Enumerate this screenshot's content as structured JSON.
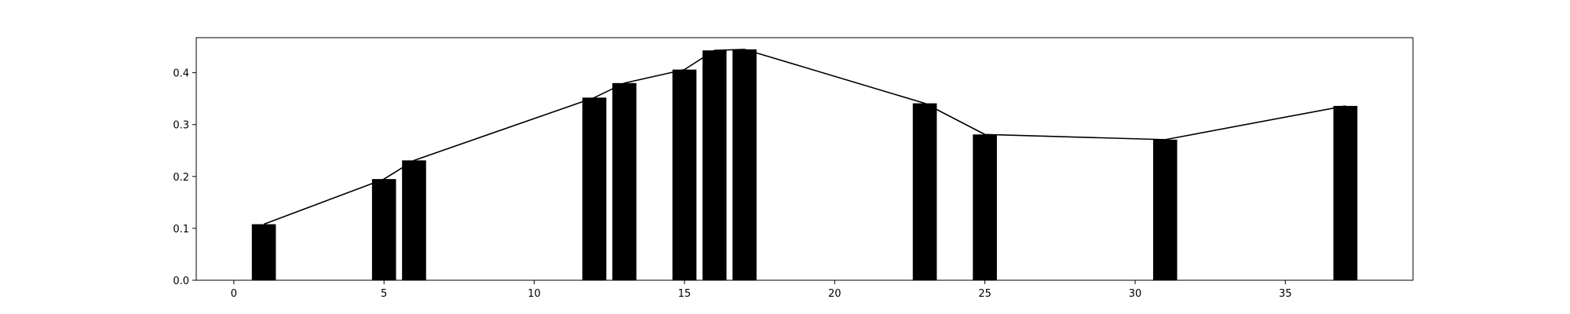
{
  "chart_data": {
    "type": "bar",
    "title": "",
    "xlabel": "",
    "ylabel": "",
    "xlim": [
      -1.25,
      39.25
    ],
    "ylim": [
      0,
      0.4675
    ],
    "grid": false,
    "legend": "none",
    "bar_color": "#000000",
    "line_color": "#000000",
    "bar_width": 0.8,
    "x": [
      1,
      5,
      6,
      12,
      13,
      15,
      16,
      17,
      23,
      25,
      31,
      37
    ],
    "values": [
      0.108,
      0.195,
      0.231,
      0.352,
      0.38,
      0.406,
      0.443,
      0.445,
      0.341,
      0.281,
      0.271,
      0.336
    ],
    "line_values": [
      0.108,
      0.195,
      0.231,
      0.352,
      0.38,
      0.406,
      0.443,
      0.445,
      0.341,
      0.281,
      0.271,
      0.336
    ],
    "xticks": [
      0,
      5,
      10,
      15,
      20,
      25,
      30,
      35
    ],
    "xtick_labels": [
      "0",
      "5",
      "10",
      "15",
      "20",
      "25",
      "30",
      "35"
    ],
    "yticks": [
      0.0,
      0.1,
      0.2,
      0.3,
      0.4
    ],
    "ytick_labels": [
      "0.0",
      "0.1",
      "0.2",
      "0.3",
      "0.4"
    ]
  }
}
